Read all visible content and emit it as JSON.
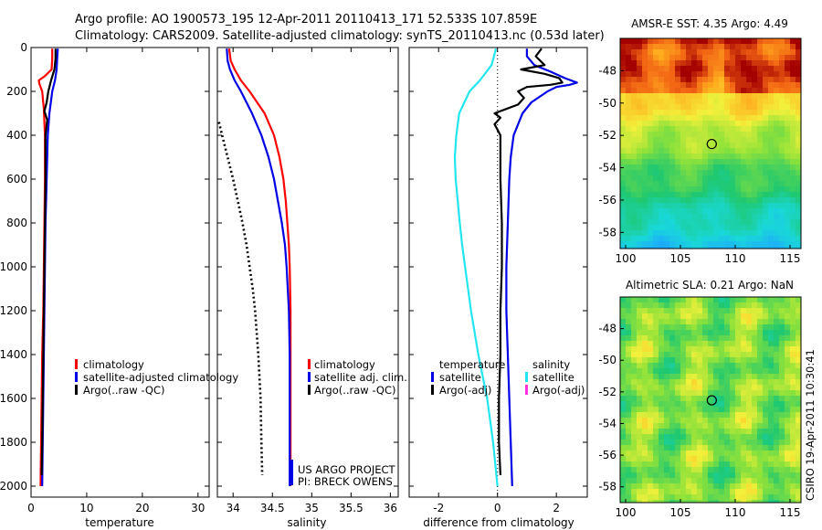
{
  "title": {
    "line1": "Argo profile: AO 1900573_195 12-Apr-2011 20110413_171 52.533S 107.859E",
    "line2": "Climatology: CARS2009. Satellite-adjusted climatology: synTS_20110413.nc (0.53d later)"
  },
  "colors": {
    "climatology": "#ff0000",
    "satellite": "#0000e6",
    "argo": "#000000",
    "salinity_satellite": "#22e6f0",
    "salinity_argo": "#ff33dd",
    "sst_warm": "#a30000",
    "sst_cold": "#22a0ff"
  },
  "chart_data": [
    {
      "type": "line",
      "id": "temperature",
      "xlabel": "temperature",
      "ylabel": "",
      "xlim": [
        0,
        32
      ],
      "ylim": [
        2050,
        0
      ],
      "xticks": [
        0,
        10,
        20,
        30
      ],
      "yticks": [
        0,
        200,
        400,
        600,
        800,
        1000,
        1200,
        1400,
        1600,
        1800,
        2000
      ],
      "legend": [
        "climatology",
        "satellite-adjusted climatology",
        "Argo(..raw -QC)"
      ],
      "series": [
        {
          "name": "climatology",
          "color": "#ff0000",
          "depth": [
            5,
            50,
            100,
            130,
            150,
            165,
            200,
            280,
            400,
            600,
            800,
            1000,
            1200,
            1400,
            1600,
            1800,
            2000
          ],
          "values": [
            3.8,
            3.8,
            3.7,
            2.5,
            1.4,
            1.5,
            2.0,
            2.3,
            2.5,
            2.5,
            2.4,
            2.3,
            2.2,
            2.0,
            1.9,
            1.8,
            1.7
          ]
        },
        {
          "name": "satellite-adjusted climatology",
          "color": "#0000e6",
          "depth": [
            5,
            50,
            100,
            150,
            200,
            300,
            400,
            600,
            800,
            1000,
            1200,
            1400,
            1600,
            1800,
            2000
          ],
          "values": [
            4.8,
            4.7,
            4.6,
            4.3,
            3.8,
            3.3,
            3.0,
            2.8,
            2.6,
            2.5,
            2.4,
            2.3,
            2.2,
            2.1,
            2.0
          ]
        },
        {
          "name": "Argo(..raw -QC)",
          "color": "#000000",
          "depth": [
            5,
            50,
            100,
            150,
            200,
            250,
            290,
            330,
            400,
            600,
            800,
            1000,
            1200,
            1400,
            1600,
            1800,
            1950
          ],
          "values": [
            4.4,
            4.4,
            4.2,
            3.6,
            3.1,
            2.8,
            2.4,
            2.9,
            2.6,
            2.6,
            2.5,
            2.4,
            2.3,
            2.2,
            2.1,
            2.0,
            1.9
          ]
        }
      ]
    },
    {
      "type": "line",
      "id": "salinity",
      "xlabel": "salinity",
      "ylabel": "",
      "xlim": [
        33.8,
        36.1
      ],
      "ylim": [
        2050,
        0
      ],
      "xticks": [
        34,
        34.5,
        35,
        35.5,
        36
      ],
      "legend": [
        "climatology",
        "satellite adj. clim.",
        "Argo(..raw -QC)"
      ],
      "annotation": [
        "US ARGO PROJECT",
        "PI: BRECK OWENS"
      ],
      "series": [
        {
          "name": "climatology",
          "color": "#ff0000",
          "depth": [
            5,
            60,
            100,
            150,
            200,
            300,
            400,
            500,
            600,
            700,
            800,
            900,
            1000,
            1200,
            1400,
            1600,
            1800,
            2000
          ],
          "values": [
            33.95,
            33.97,
            34.02,
            34.1,
            34.21,
            34.4,
            34.52,
            34.59,
            34.64,
            34.67,
            34.69,
            34.71,
            34.72,
            34.73,
            34.73,
            34.73,
            34.73,
            34.73
          ]
        },
        {
          "name": "satellite adj. clim.",
          "color": "#0000e6",
          "depth": [
            5,
            60,
            100,
            150,
            200,
            300,
            400,
            500,
            600,
            700,
            800,
            900,
            1000,
            1200,
            1400,
            1600,
            1800,
            2000
          ],
          "values": [
            33.92,
            33.93,
            33.96,
            34.02,
            34.1,
            34.24,
            34.36,
            34.45,
            34.52,
            34.57,
            34.62,
            34.66,
            34.68,
            34.71,
            34.72,
            34.72,
            34.72,
            34.72
          ]
        },
        {
          "name": "Argo(..raw -QC)",
          "color": "#000000",
          "dash": true,
          "depth": [
            340,
            400,
            500,
            600,
            700,
            800,
            900,
            1000,
            1100,
            1200,
            1400,
            1600,
            1800,
            1950
          ],
          "values": [
            33.82,
            33.86,
            33.93,
            34.0,
            34.06,
            34.12,
            34.17,
            34.21,
            34.25,
            34.28,
            34.32,
            34.35,
            34.36,
            34.37
          ]
        }
      ]
    },
    {
      "type": "line",
      "id": "difference",
      "xlabel": "difference from climatology",
      "ylabel": "",
      "xlim": [
        -3,
        3.05
      ],
      "ylim": [
        2050,
        0
      ],
      "xticks": [
        -2,
        0,
        2
      ],
      "legend_groups": [
        {
          "header": "temperature",
          "items": [
            "satellite",
            "Argo(-adj)"
          ]
        },
        {
          "header": "salinity",
          "items": [
            "satellite",
            "Argo(-adj)"
          ]
        }
      ],
      "series": [
        {
          "name": "temperature satellite",
          "color": "#0000e6",
          "depth": [
            5,
            40,
            80,
            110,
            140,
            160,
            170,
            180,
            200,
            250,
            300,
            400,
            500,
            600,
            800,
            1000,
            1200,
            1400,
            1600,
            1800,
            2000
          ],
          "values": [
            1.0,
            1.0,
            1.25,
            1.8,
            2.3,
            2.7,
            2.45,
            2.0,
            1.7,
            1.15,
            0.85,
            0.55,
            0.45,
            0.4,
            0.35,
            0.3,
            0.3,
            0.35,
            0.4,
            0.45,
            0.5
          ]
        },
        {
          "name": "temperature Argo(-adj)",
          "color": "#000000",
          "depth": [
            5,
            40,
            80,
            100,
            120,
            140,
            160,
            170,
            180,
            200,
            230,
            260,
            280,
            300,
            320,
            350,
            400,
            500,
            600,
            800,
            1000,
            1200,
            1400,
            1600,
            1800,
            1950
          ],
          "values": [
            1.5,
            1.3,
            1.6,
            0.8,
            1.6,
            2.1,
            2.2,
            1.8,
            1.0,
            0.7,
            0.9,
            0.7,
            0.3,
            -0.1,
            0.1,
            -0.1,
            0.1,
            0.1,
            0.1,
            0.15,
            0.15,
            0.1,
            0.1,
            0.05,
            0.05,
            0.1
          ]
        },
        {
          "name": "salinity satellite",
          "color": "#22e6f0",
          "depth": [
            5,
            80,
            150,
            200,
            300,
            400,
            500,
            600,
            700,
            800,
            900,
            1000,
            1200,
            1400,
            1600,
            1800,
            2000
          ],
          "values": [
            -0.05,
            -0.2,
            -0.6,
            -0.95,
            -1.3,
            -1.4,
            -1.45,
            -1.42,
            -1.35,
            -1.28,
            -1.2,
            -1.1,
            -0.9,
            -0.65,
            -0.35,
            -0.15,
            0.0
          ]
        }
      ]
    },
    {
      "type": "heatmap",
      "id": "sst-map",
      "title": "AMSR-E SST: 4.35 Argo: 4.49",
      "xlim": [
        99.5,
        116
      ],
      "ylim": [
        -59,
        -46
      ],
      "xticks": [
        100,
        105,
        110,
        115
      ],
      "yticks": [
        -48,
        -50,
        -52,
        -54,
        -56,
        -58
      ],
      "marker": {
        "lon": 107.859,
        "lat": -52.533
      }
    },
    {
      "type": "heatmap",
      "id": "sla-map",
      "title": "Altimetric SLA: 0.21 Argo: NaN",
      "xlim": [
        99.5,
        116
      ],
      "ylim": [
        -59,
        -46
      ],
      "xticks": [
        100,
        105,
        110,
        115
      ],
      "yticks": [
        -48,
        -50,
        -52,
        -54,
        -56,
        -58
      ],
      "marker": {
        "lon": 107.859,
        "lat": -52.533
      }
    }
  ],
  "credit": "CSIRO 19-Apr-2011 10:30:41"
}
